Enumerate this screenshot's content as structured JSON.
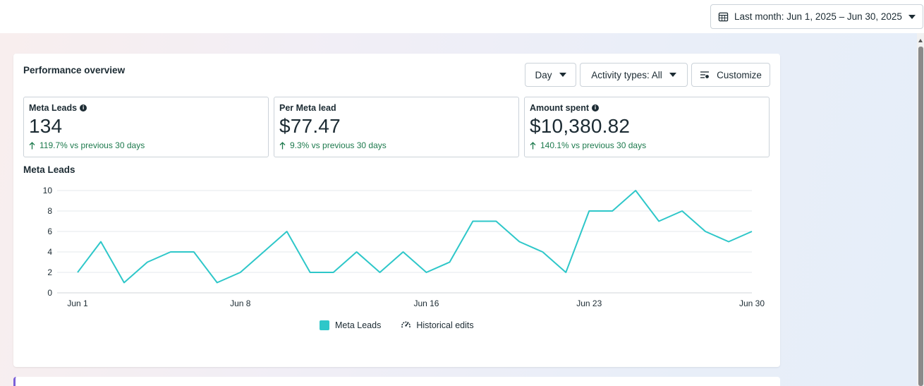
{
  "date_range": {
    "label": "Last month: Jun 1, 2025 – Jun 30, 2025",
    "icon": "calendar-icon"
  },
  "card": {
    "title": "Performance overview",
    "buttons": {
      "day": "Day",
      "activity": "Activity types: All",
      "customize": "Customize"
    }
  },
  "metrics": [
    {
      "label": "Meta Leads",
      "value": "134",
      "change": "119.7% vs previous 30 days",
      "has_info": true
    },
    {
      "label": "Per Meta lead",
      "value": "$77.47",
      "change": "9.3% vs previous 30 days",
      "has_info": false
    },
    {
      "label": "Amount spent",
      "value": "$10,380.82",
      "change": "140.1% vs previous 30 days",
      "has_info": true
    }
  ],
  "colors": {
    "accent": "#2ec7c9",
    "positive": "#1d7a4d",
    "border": "#cbd2d9"
  },
  "chart_data": {
    "type": "line",
    "title": "Meta Leads",
    "x": [
      "Jun 1",
      "Jun 2",
      "Jun 3",
      "Jun 4",
      "Jun 5",
      "Jun 6",
      "Jun 7",
      "Jun 8",
      "Jun 9",
      "Jun 10",
      "Jun 11",
      "Jun 12",
      "Jun 13",
      "Jun 14",
      "Jun 15",
      "Jun 16",
      "Jun 17",
      "Jun 18",
      "Jun 19",
      "Jun 20",
      "Jun 21",
      "Jun 22",
      "Jun 23",
      "Jun 24",
      "Jun 25",
      "Jun 26",
      "Jun 27",
      "Jun 28",
      "Jun 29",
      "Jun 30"
    ],
    "x_ticks": [
      "Jun 1",
      "Jun 8",
      "Jun 16",
      "Jun 23",
      "Jun 30"
    ],
    "y_ticks": [
      0,
      2,
      4,
      6,
      8,
      10
    ],
    "ylim": [
      0,
      10
    ],
    "series": [
      {
        "name": "Meta Leads",
        "values": [
          2,
          5,
          1,
          3,
          4,
          4,
          1,
          2,
          4,
          6,
          2,
          2,
          4,
          2,
          4,
          2,
          3,
          7,
          7,
          5,
          4,
          2,
          8,
          8,
          10,
          7,
          8,
          6,
          5,
          6
        ]
      }
    ],
    "legend": [
      "Meta Leads",
      "Historical edits"
    ],
    "grid": true
  }
}
